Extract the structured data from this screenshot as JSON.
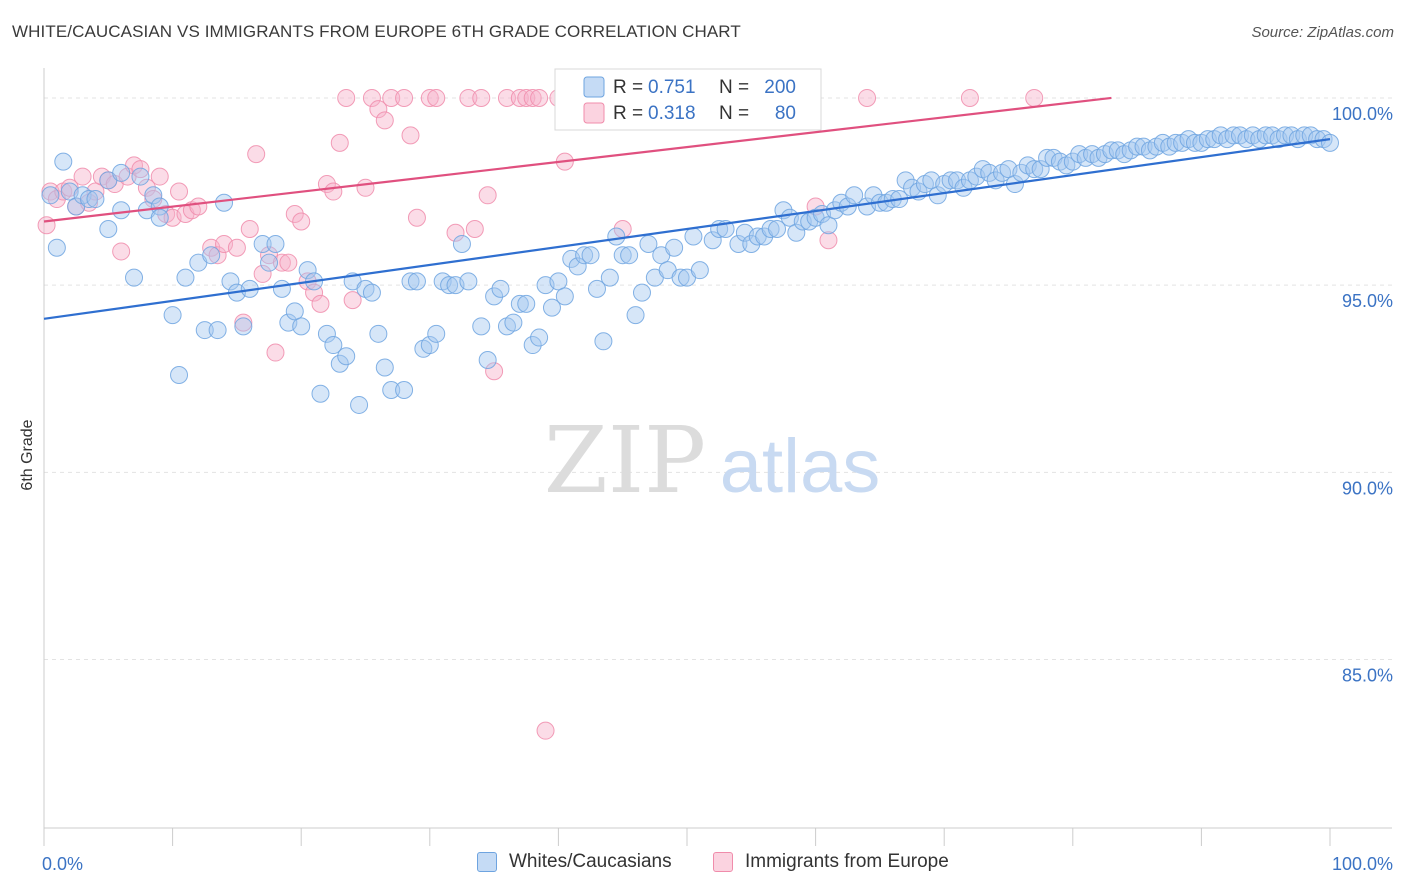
{
  "title": "WHITE/CAUCASIAN VS IMMIGRANTS FROM EUROPE 6TH GRADE CORRELATION CHART",
  "source": "Source: ZipAtlas.com",
  "watermark": {
    "part1": "ZIP",
    "part2": "atlas"
  },
  "legend_box": {
    "rows": [
      {
        "r_label": "R =",
        "r_value": "0.751",
        "n_label": "N =",
        "n_value": "200",
        "color": "#6ea4e0"
      },
      {
        "r_label": "R =",
        "r_value": "0.318",
        "n_label": "N =",
        "n_value": "80",
        "color": "#f08cab"
      }
    ]
  },
  "bottom_legend": [
    {
      "label": "Whites/Caucasians",
      "color": "#6ea4e0"
    },
    {
      "label": "Immigrants from Europe",
      "color": "#f08cab"
    }
  ],
  "chart_data": {
    "type": "scatter",
    "title": "WHITE/CAUCASIAN VS IMMIGRANTS FROM EUROPE 6TH GRADE CORRELATION CHART",
    "xlabel": "",
    "ylabel": "6th Grade",
    "xlim": [
      0,
      100
    ],
    "ylim": [
      80.5,
      100.8
    ],
    "x_tick_labels": [
      "0.0%",
      "100.0%"
    ],
    "y_ticks": [
      85,
      90,
      95,
      100
    ],
    "y_tick_labels": [
      "85.0%",
      "90.0%",
      "95.0%",
      "100.0%"
    ],
    "grid": true,
    "legend_position": "top-center",
    "colors": {
      "blue": "#6ea4e0",
      "pink": "#f08cab",
      "blue_line": "#2f6fd0",
      "pink_line": "#e0507f",
      "tick_label": "#3b73c4"
    },
    "series": [
      {
        "name": "Whites/Caucasians",
        "color": "blue",
        "trendline": [
          [
            0,
            94.1
          ],
          [
            100,
            98.9
          ]
        ],
        "points": [
          [
            0.5,
            97.4
          ],
          [
            1,
            96.0
          ],
          [
            1.5,
            98.3
          ],
          [
            2,
            97.5
          ],
          [
            2.5,
            97.1
          ],
          [
            3,
            97.4
          ],
          [
            3.5,
            97.3
          ],
          [
            4,
            97.3
          ],
          [
            5,
            97.8
          ],
          [
            5,
            96.5
          ],
          [
            6,
            97.0
          ],
          [
            6,
            98.0
          ],
          [
            7,
            95.2
          ],
          [
            7.5,
            97.9
          ],
          [
            8,
            97.0
          ],
          [
            8.5,
            97.4
          ],
          [
            9,
            97.1
          ],
          [
            9,
            96.8
          ],
          [
            10,
            94.2
          ],
          [
            10.5,
            92.6
          ],
          [
            11,
            95.2
          ],
          [
            12,
            95.6
          ],
          [
            12.5,
            93.8
          ],
          [
            13,
            95.8
          ],
          [
            13.5,
            93.8
          ],
          [
            14,
            97.2
          ],
          [
            14.5,
            95.1
          ],
          [
            15,
            94.8
          ],
          [
            15.5,
            93.9
          ],
          [
            16,
            94.9
          ],
          [
            17,
            96.1
          ],
          [
            17.5,
            95.6
          ],
          [
            18,
            96.1
          ],
          [
            18.5,
            94.9
          ],
          [
            19,
            94.0
          ],
          [
            19.5,
            94.3
          ],
          [
            20,
            93.9
          ],
          [
            20.5,
            95.4
          ],
          [
            21,
            95.1
          ],
          [
            21.5,
            92.1
          ],
          [
            22,
            93.7
          ],
          [
            22.5,
            93.4
          ],
          [
            23,
            92.9
          ],
          [
            23.5,
            93.1
          ],
          [
            24,
            95.1
          ],
          [
            24.5,
            91.8
          ],
          [
            25,
            94.9
          ],
          [
            25.5,
            94.8
          ],
          [
            26,
            93.7
          ],
          [
            26.5,
            92.8
          ],
          [
            27,
            92.2
          ],
          [
            28,
            92.2
          ],
          [
            28.5,
            95.1
          ],
          [
            29,
            95.1
          ],
          [
            29.5,
            93.3
          ],
          [
            30,
            93.4
          ],
          [
            30.5,
            93.7
          ],
          [
            31,
            95.1
          ],
          [
            31.5,
            95.0
          ],
          [
            32,
            95.0
          ],
          [
            32.5,
            96.1
          ],
          [
            33,
            95.1
          ],
          [
            34,
            93.9
          ],
          [
            34.5,
            93.0
          ],
          [
            35,
            94.7
          ],
          [
            35.5,
            94.9
          ],
          [
            36,
            93.9
          ],
          [
            36.5,
            94.0
          ],
          [
            37,
            94.5
          ],
          [
            37.5,
            94.5
          ],
          [
            38,
            93.4
          ],
          [
            38.5,
            93.6
          ],
          [
            39,
            95.0
          ],
          [
            39.5,
            94.4
          ],
          [
            40,
            95.1
          ],
          [
            40.5,
            94.7
          ],
          [
            41,
            95.7
          ],
          [
            41.5,
            95.5
          ],
          [
            42,
            95.8
          ],
          [
            42.5,
            95.8
          ],
          [
            43,
            94.9
          ],
          [
            43.5,
            93.5
          ],
          [
            44,
            95.2
          ],
          [
            44.5,
            96.3
          ],
          [
            45,
            95.8
          ],
          [
            45.5,
            95.8
          ],
          [
            46,
            94.2
          ],
          [
            46.5,
            94.8
          ],
          [
            47,
            96.1
          ],
          [
            47.5,
            95.2
          ],
          [
            48,
            95.8
          ],
          [
            48.5,
            95.4
          ],
          [
            49,
            96.0
          ],
          [
            49.5,
            95.2
          ],
          [
            50,
            95.2
          ],
          [
            50.5,
            96.3
          ],
          [
            51,
            95.4
          ],
          [
            52,
            96.2
          ],
          [
            52.5,
            96.5
          ],
          [
            53,
            96.5
          ],
          [
            54,
            96.1
          ],
          [
            54.5,
            96.4
          ],
          [
            55,
            96.1
          ],
          [
            55.5,
            96.3
          ],
          [
            56,
            96.3
          ],
          [
            56.5,
            96.5
          ],
          [
            57,
            96.5
          ],
          [
            57.5,
            97.0
          ],
          [
            58,
            96.8
          ],
          [
            58.5,
            96.4
          ],
          [
            59,
            96.7
          ],
          [
            59.5,
            96.7
          ],
          [
            60,
            96.8
          ],
          [
            60.5,
            96.9
          ],
          [
            61,
            96.6
          ],
          [
            61.5,
            97.0
          ],
          [
            62,
            97.2
          ],
          [
            62.5,
            97.1
          ],
          [
            63,
            97.4
          ],
          [
            64,
            97.1
          ],
          [
            64.5,
            97.4
          ],
          [
            65,
            97.2
          ],
          [
            65.5,
            97.2
          ],
          [
            66,
            97.3
          ],
          [
            66.5,
            97.3
          ],
          [
            67,
            97.8
          ],
          [
            67.5,
            97.6
          ],
          [
            68,
            97.5
          ],
          [
            68.5,
            97.7
          ],
          [
            69,
            97.8
          ],
          [
            69.5,
            97.4
          ],
          [
            70,
            97.7
          ],
          [
            70.5,
            97.8
          ],
          [
            71,
            97.8
          ],
          [
            71.5,
            97.6
          ],
          [
            72,
            97.8
          ],
          [
            72.5,
            97.9
          ],
          [
            73,
            98.1
          ],
          [
            73.5,
            98.0
          ],
          [
            74,
            97.8
          ],
          [
            74.5,
            98.0
          ],
          [
            75,
            98.1
          ],
          [
            75.5,
            97.7
          ],
          [
            76,
            98.0
          ],
          [
            76.5,
            98.2
          ],
          [
            77,
            98.1
          ],
          [
            77.5,
            98.1
          ],
          [
            78,
            98.4
          ],
          [
            78.5,
            98.4
          ],
          [
            79,
            98.3
          ],
          [
            79.5,
            98.2
          ],
          [
            80,
            98.3
          ],
          [
            80.5,
            98.5
          ],
          [
            81,
            98.4
          ],
          [
            81.5,
            98.5
          ],
          [
            82,
            98.4
          ],
          [
            82.5,
            98.5
          ],
          [
            83,
            98.6
          ],
          [
            83.5,
            98.6
          ],
          [
            84,
            98.5
          ],
          [
            84.5,
            98.6
          ],
          [
            85,
            98.7
          ],
          [
            85.5,
            98.7
          ],
          [
            86,
            98.6
          ],
          [
            86.5,
            98.7
          ],
          [
            87,
            98.8
          ],
          [
            87.5,
            98.7
          ],
          [
            88,
            98.8
          ],
          [
            88.5,
            98.8
          ],
          [
            89,
            98.9
          ],
          [
            89.5,
            98.8
          ],
          [
            90,
            98.8
          ],
          [
            90.5,
            98.9
          ],
          [
            91,
            98.9
          ],
          [
            91.5,
            99.0
          ],
          [
            92,
            98.9
          ],
          [
            92.5,
            99.0
          ],
          [
            93,
            99.0
          ],
          [
            93.5,
            98.9
          ],
          [
            94,
            99.0
          ],
          [
            94.5,
            98.9
          ],
          [
            95,
            99.0
          ],
          [
            95.5,
            99.0
          ],
          [
            96,
            98.9
          ],
          [
            96.5,
            99.0
          ],
          [
            97,
            99.0
          ],
          [
            97.5,
            98.9
          ],
          [
            98,
            99.0
          ],
          [
            98.5,
            99.0
          ],
          [
            99,
            98.9
          ],
          [
            99.5,
            98.9
          ],
          [
            100,
            98.8
          ]
        ]
      },
      {
        "name": "Immigrants from Europe",
        "color": "pink",
        "trendline": [
          [
            0,
            96.7
          ],
          [
            83,
            100.0
          ]
        ],
        "points": [
          [
            0.2,
            96.6
          ],
          [
            0.5,
            97.5
          ],
          [
            1,
            97.3
          ],
          [
            1.5,
            97.5
          ],
          [
            2,
            97.6
          ],
          [
            2.5,
            97.1
          ],
          [
            3,
            97.9
          ],
          [
            3.5,
            97.2
          ],
          [
            4,
            97.5
          ],
          [
            4.5,
            97.9
          ],
          [
            5,
            97.8
          ],
          [
            5.5,
            97.7
          ],
          [
            6,
            95.9
          ],
          [
            6.5,
            97.9
          ],
          [
            7,
            98.2
          ],
          [
            7.5,
            98.1
          ],
          [
            8,
            97.6
          ],
          [
            8.5,
            97.3
          ],
          [
            9,
            97.9
          ],
          [
            9.5,
            96.9
          ],
          [
            10,
            96.8
          ],
          [
            10.5,
            97.5
          ],
          [
            11,
            96.9
          ],
          [
            11.5,
            97.0
          ],
          [
            12,
            97.1
          ],
          [
            13,
            96.0
          ],
          [
            13.5,
            95.8
          ],
          [
            14,
            96.1
          ],
          [
            15,
            96.0
          ],
          [
            15.5,
            94.0
          ],
          [
            16,
            96.5
          ],
          [
            16.5,
            98.5
          ],
          [
            17,
            95.3
          ],
          [
            17.5,
            95.8
          ],
          [
            18,
            93.2
          ],
          [
            18.5,
            95.6
          ],
          [
            19,
            95.6
          ],
          [
            19.5,
            96.9
          ],
          [
            20,
            96.7
          ],
          [
            20.5,
            95.1
          ],
          [
            21,
            94.8
          ],
          [
            21.5,
            94.5
          ],
          [
            22,
            97.7
          ],
          [
            22.5,
            97.5
          ],
          [
            23,
            98.8
          ],
          [
            23.5,
            100.0
          ],
          [
            24,
            94.6
          ],
          [
            25,
            97.6
          ],
          [
            25.5,
            100.0
          ],
          [
            26,
            99.7
          ],
          [
            26.5,
            99.4
          ],
          [
            27,
            100.0
          ],
          [
            28,
            100.0
          ],
          [
            28.5,
            99.0
          ],
          [
            29,
            96.8
          ],
          [
            30,
            100.0
          ],
          [
            30.5,
            100.0
          ],
          [
            32,
            96.4
          ],
          [
            33,
            100.0
          ],
          [
            33.5,
            96.5
          ],
          [
            34,
            100.0
          ],
          [
            34.5,
            97.4
          ],
          [
            35,
            92.7
          ],
          [
            36,
            100.0
          ],
          [
            37,
            100.0
          ],
          [
            37.5,
            100.0
          ],
          [
            38,
            100.0
          ],
          [
            38.5,
            100.0
          ],
          [
            39,
            83.1
          ],
          [
            40,
            100.0
          ],
          [
            40.5,
            98.3
          ],
          [
            41,
            100.0
          ],
          [
            42,
            100.0
          ],
          [
            45,
            96.5
          ],
          [
            47,
            100.0
          ],
          [
            50,
            100.0
          ],
          [
            56,
            100.0
          ],
          [
            60,
            97.1
          ],
          [
            61,
            96.2
          ],
          [
            64,
            100.0
          ],
          [
            72,
            100.0
          ],
          [
            77,
            100.0
          ]
        ]
      }
    ]
  }
}
